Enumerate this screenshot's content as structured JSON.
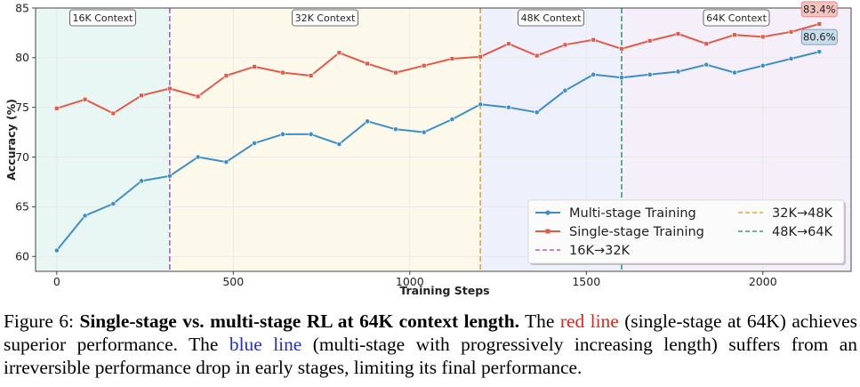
{
  "chart_data": {
    "type": "line",
    "xlabel": "Training Steps",
    "ylabel": "Accuracy (%)",
    "xlim": [
      -60,
      2250
    ],
    "ylim": [
      58.5,
      85
    ],
    "xticks": [
      0,
      500,
      1000,
      1500,
      2000
    ],
    "yticks": [
      60,
      65,
      70,
      75,
      80,
      85
    ],
    "grid": true,
    "legend_position": "lower-right",
    "regions": [
      {
        "label": "16K Context",
        "from": -60,
        "to": 320,
        "color": "#e9f7f4"
      },
      {
        "label": "32K Context",
        "from": 320,
        "to": 1200,
        "color": "#fdf9ea"
      },
      {
        "label": "48K Context",
        "from": 1200,
        "to": 1600,
        "color": "#eef1fb"
      },
      {
        "label": "64K Context",
        "from": 1600,
        "to": 2250,
        "color": "#f4eff9"
      }
    ],
    "transitions": [
      {
        "x": 320,
        "name": "16K→32K",
        "color": "#a064c8"
      },
      {
        "x": 1200,
        "name": "32K→48K",
        "color": "#e9a23b"
      },
      {
        "x": 1600,
        "name": "48K→64K",
        "color": "#3a9c7f"
      }
    ],
    "series": [
      {
        "name": "Multi-stage Training",
        "color": "#3d8fc6",
        "marker": "circle",
        "x": [
          0,
          80,
          160,
          240,
          320,
          400,
          480,
          560,
          640,
          720,
          800,
          880,
          960,
          1040,
          1120,
          1200,
          1280,
          1360,
          1440,
          1520,
          1600,
          1680,
          1760,
          1840,
          1920,
          2000,
          2080,
          2160
        ],
        "values": [
          60.6,
          64.1,
          65.3,
          67.6,
          68.1,
          70.0,
          69.5,
          71.4,
          72.3,
          72.3,
          71.3,
          73.6,
          72.8,
          72.5,
          73.8,
          75.3,
          75.0,
          74.5,
          76.7,
          78.3,
          78.0,
          78.3,
          78.6,
          79.3,
          78.5,
          79.2,
          79.9,
          80.6
        ],
        "final_label": "80.6%"
      },
      {
        "name": "Single-stage Training",
        "color": "#e15b4b",
        "marker": "square",
        "x": [
          0,
          80,
          160,
          240,
          320,
          400,
          480,
          560,
          640,
          720,
          800,
          880,
          960,
          1040,
          1120,
          1200,
          1280,
          1360,
          1440,
          1520,
          1600,
          1680,
          1760,
          1840,
          1920,
          2000,
          2080,
          2160
        ],
        "values": [
          74.9,
          75.8,
          74.4,
          76.2,
          76.9,
          76.1,
          78.2,
          79.1,
          78.5,
          78.2,
          80.5,
          79.4,
          78.5,
          79.2,
          79.9,
          80.1,
          81.4,
          80.2,
          81.3,
          81.8,
          80.9,
          81.7,
          82.4,
          81.4,
          82.3,
          82.1,
          82.6,
          83.4
        ],
        "final_label": "83.4%"
      }
    ]
  },
  "caption": {
    "figure_label": "Figure 6:",
    "title": "Single-stage vs. multi-stage RL at 64K context length.",
    "text_1": "The",
    "red_phrase": "red line",
    "text_2": "(single-stage at 64K) achieves superior performance. The",
    "blue_phrase": "blue line",
    "text_3": "(multi-stage with progressively increasing length) suffers from an irreversible performance drop in early stages, limiting its final performance."
  }
}
